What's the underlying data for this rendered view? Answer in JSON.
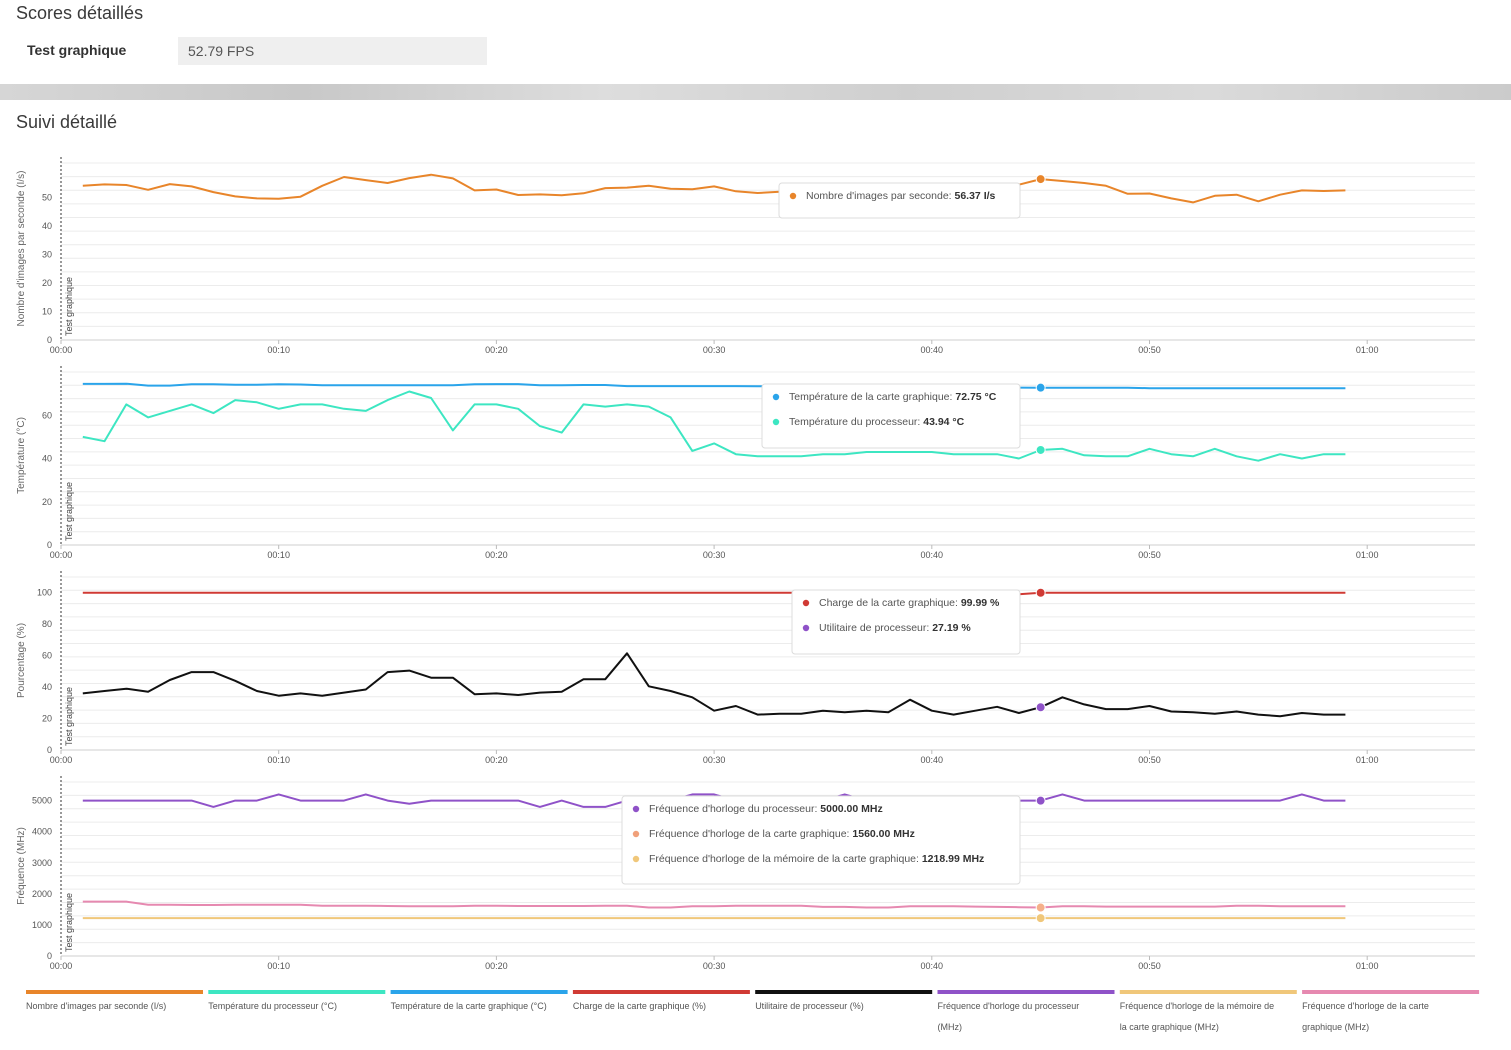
{
  "scores": {
    "title": "Scores détaillés",
    "label": "Test graphique",
    "value": "52.79 FPS"
  },
  "tracking": {
    "title": "Suivi détaillé"
  },
  "colors": {
    "fps": "#e8852a",
    "cpu_temp": "#3de6c2",
    "gpu_temp": "#2aa4ea",
    "gpu_load": "#d03a34",
    "cpu_util": "#111111",
    "cpu_clock": "#8f52c8",
    "mem_clock": "#f0c77a",
    "gpu_clock": "#e689b0"
  },
  "chart_data": [
    {
      "type": "line",
      "ylabel": "Nombre d'images par seconde (I/s)",
      "marker_label": "Test graphique",
      "ylim": [
        0,
        62
      ],
      "yticks": [
        0,
        10,
        20,
        30,
        40,
        50
      ],
      "xlim": [
        0,
        65
      ],
      "xticks": [
        "00:00",
        "00:10",
        "00:20",
        "00:30",
        "00:40",
        "00:50",
        "01:00"
      ],
      "grid": true,
      "series": [
        {
          "name": "Nombre d'images par seconde",
          "color_key": "fps",
          "x": [
            1,
            2,
            3,
            4,
            5,
            6,
            7,
            8,
            9,
            10,
            11,
            12,
            13,
            14,
            15,
            16,
            17,
            18,
            19,
            20,
            21,
            22,
            23,
            24,
            25,
            26,
            27,
            28,
            29,
            30,
            31,
            32,
            33,
            34,
            35,
            36,
            37,
            38,
            39,
            40,
            41,
            42,
            43,
            44,
            45,
            46,
            47,
            48,
            49,
            50,
            51,
            52,
            53,
            54,
            55,
            56,
            57,
            58,
            59
          ],
          "y": [
            54,
            54.5,
            54.3,
            52.6,
            54.6,
            53.8,
            51.8,
            50.3,
            49.6,
            49.5,
            50.2,
            54,
            57.1,
            56,
            55,
            56.7,
            57.9,
            56.6,
            52.4,
            52.7,
            50.8,
            51,
            50.7,
            51.4,
            53.2,
            53.4,
            54,
            53,
            52.8,
            53.8,
            52.1,
            51.5,
            51.9,
            51.1,
            51.5,
            51.7,
            51.2,
            51.4,
            51.6,
            51.3,
            51.6,
            51.4,
            52.2,
            54.4,
            56.37,
            55.7,
            55,
            54,
            51.2,
            51.3,
            49.6,
            48.2,
            50.5,
            50.9,
            48.6,
            50.9,
            52.4,
            52.2,
            52.4
          ]
        }
      ],
      "tooltip": [
        {
          "color_key": "fps",
          "label": "Nombre d'images par seconde: ",
          "value": "56.37 I/s"
        }
      ],
      "hover_x": 45
    },
    {
      "type": "line",
      "ylabel": "Température (°C)",
      "marker_label": "Test graphique",
      "ylim": [
        0,
        80
      ],
      "yticks": [
        0,
        20,
        40,
        60
      ],
      "xlim": [
        0,
        65
      ],
      "xticks": [
        "00:00",
        "00:10",
        "00:20",
        "00:30",
        "00:40",
        "00:50",
        "01:00"
      ],
      "grid": true,
      "series": [
        {
          "name": "Température de la carte graphique",
          "color_key": "gpu_temp",
          "x": [
            1,
            2,
            3,
            4,
            5,
            6,
            7,
            8,
            9,
            10,
            11,
            12,
            13,
            14,
            15,
            16,
            17,
            18,
            19,
            20,
            21,
            22,
            23,
            24,
            25,
            26,
            27,
            28,
            29,
            30,
            31,
            32,
            33,
            34,
            35,
            36,
            37,
            38,
            39,
            40,
            41,
            42,
            43,
            44,
            45,
            46,
            47,
            48,
            49,
            50,
            51,
            52,
            53,
            54,
            55,
            56,
            57,
            58,
            59
          ],
          "y": [
            74.5,
            74.5,
            74.6,
            73.7,
            73.7,
            74.3,
            74.3,
            74.1,
            74.1,
            74.3,
            74.2,
            73.9,
            73.9,
            73.9,
            73.9,
            73.9,
            73.9,
            73.9,
            74.3,
            74.4,
            74.4,
            73.9,
            73.9,
            74,
            74,
            73.5,
            73.5,
            73.5,
            73.5,
            73.5,
            73.5,
            73.4,
            73.4,
            73.4,
            73.3,
            73.3,
            73.2,
            73.1,
            73,
            73,
            73,
            72.9,
            72.9,
            72.8,
            72.75,
            72.75,
            72.75,
            72.75,
            72.75,
            72.5,
            72.5,
            72.5,
            72.5,
            72.5,
            72.5,
            72.5,
            72.5,
            72.5,
            72.5
          ]
        },
        {
          "name": "Température du processeur",
          "color_key": "cpu_temp",
          "x": [
            1,
            2,
            3,
            4,
            5,
            6,
            7,
            8,
            9,
            10,
            11,
            12,
            13,
            14,
            15,
            16,
            17,
            18,
            19,
            20,
            21,
            22,
            23,
            24,
            25,
            26,
            27,
            28,
            29,
            30,
            31,
            32,
            33,
            34,
            35,
            36,
            37,
            38,
            39,
            40,
            41,
            42,
            43,
            44,
            45,
            46,
            47,
            48,
            49,
            50,
            51,
            52,
            53,
            54,
            55,
            56,
            57,
            58,
            59
          ],
          "y": [
            50,
            48,
            65,
            59,
            62,
            65,
            61,
            67,
            66,
            63,
            65,
            65,
            63,
            62,
            67,
            71,
            68,
            53,
            65,
            65,
            63,
            55,
            52,
            65,
            64,
            65,
            64,
            59,
            43.5,
            47,
            42,
            41,
            41,
            41,
            42,
            42,
            43,
            43,
            43,
            43,
            42,
            42,
            42,
            40,
            43.94,
            44.5,
            41.5,
            41,
            41,
            44.5,
            42,
            41,
            44.5,
            41,
            39,
            42,
            40,
            42,
            42
          ]
        }
      ],
      "tooltip": [
        {
          "color_key": "gpu_temp",
          "label": "Température de la carte graphique: ",
          "value": "72.75 °C"
        },
        {
          "color_key": "cpu_temp",
          "label": "Température du processeur: ",
          "value": "43.94 °C"
        }
      ],
      "hover_x": 45
    },
    {
      "type": "line",
      "ylabel": "Pourcentage (%)",
      "marker_label": "Test graphique",
      "ylim": [
        0,
        110
      ],
      "yticks": [
        0,
        20,
        40,
        60,
        80,
        100
      ],
      "xlim": [
        0,
        65
      ],
      "xticks": [
        "00:00",
        "00:10",
        "00:20",
        "00:30",
        "00:40",
        "00:50",
        "01:00"
      ],
      "grid": true,
      "series": [
        {
          "name": "Charge de la carte graphique",
          "color_key": "gpu_load",
          "x": [
            1,
            2,
            3,
            4,
            5,
            6,
            7,
            8,
            9,
            10,
            11,
            12,
            13,
            14,
            15,
            16,
            17,
            18,
            19,
            20,
            21,
            22,
            23,
            24,
            25,
            26,
            27,
            28,
            29,
            30,
            31,
            32,
            33,
            34,
            35,
            36,
            37,
            38,
            39,
            40,
            41,
            42,
            43,
            44,
            45,
            46,
            47,
            48,
            49,
            50,
            51,
            52,
            53,
            54,
            55,
            56,
            57,
            58,
            59
          ],
          "y": [
            100,
            100,
            100,
            100,
            100,
            100,
            100,
            100,
            100,
            100,
            100,
            100,
            100,
            100,
            100,
            100,
            100,
            100,
            100,
            100,
            100,
            100,
            100,
            100,
            100,
            100,
            100,
            100,
            100,
            100,
            100,
            100,
            100,
            100,
            100,
            100,
            100,
            100,
            100,
            100,
            100,
            100,
            99,
            99,
            99.99,
            100,
            100,
            100,
            100,
            100,
            100,
            100,
            100,
            100,
            100,
            100,
            100,
            100,
            100
          ]
        },
        {
          "name": "Utilitaire de processeur",
          "color_key": "cpu_util",
          "x": [
            1,
            2,
            3,
            4,
            5,
            6,
            7,
            8,
            9,
            10,
            11,
            12,
            13,
            14,
            15,
            16,
            17,
            18,
            19,
            20,
            21,
            22,
            23,
            24,
            25,
            26,
            27,
            28,
            29,
            30,
            31,
            32,
            33,
            34,
            35,
            36,
            37,
            38,
            39,
            40,
            41,
            42,
            43,
            44,
            45,
            46,
            47,
            48,
            49,
            50,
            51,
            52,
            53,
            54,
            55,
            56,
            57,
            58,
            59
          ],
          "y": [
            36,
            37.5,
            39,
            37,
            44.5,
            49.5,
            49.5,
            44,
            37.5,
            34.5,
            36,
            34.5,
            36.5,
            38.5,
            49.5,
            50.5,
            46,
            46,
            35.5,
            36,
            35,
            36.5,
            37,
            45,
            45,
            61.5,
            40.5,
            37.5,
            33.5,
            25,
            28,
            22.5,
            23,
            23,
            25,
            24,
            25,
            24,
            32,
            25,
            22.5,
            25,
            27.5,
            23.5,
            27.19,
            33.5,
            29,
            26,
            26,
            28,
            24.5,
            24,
            23,
            24.5,
            22.5,
            21.5,
            23.5,
            22.5,
            22.5
          ]
        }
      ],
      "tooltip": [
        {
          "color_key": "gpu_load",
          "label": "Charge de la carte graphique: ",
          "value": "99.99 %"
        },
        {
          "color_key": "cpu_clock",
          "label": "Utilitaire de processeur: ",
          "value": "27.19 %"
        }
      ],
      "hover_x": 45,
      "hover_colors": [
        "gpu_load",
        "cpu_clock"
      ]
    },
    {
      "type": "line",
      "ylabel": "Fréquence (MHz)",
      "marker_label": "Test graphique",
      "ylim": [
        0,
        5600
      ],
      "yticks": [
        0,
        1000,
        2000,
        3000,
        4000,
        5000
      ],
      "xlim": [
        0,
        65
      ],
      "xticks": [
        "00:00",
        "00:10",
        "00:20",
        "00:30",
        "00:40",
        "00:50",
        "01:00"
      ],
      "grid": true,
      "series": [
        {
          "name": "Fréquence d'horloge du processeur",
          "color_key": "cpu_clock",
          "x": [
            1,
            2,
            3,
            4,
            5,
            6,
            7,
            8,
            9,
            10,
            11,
            12,
            13,
            14,
            15,
            16,
            17,
            18,
            19,
            20,
            21,
            22,
            23,
            24,
            25,
            26,
            27,
            28,
            29,
            30,
            31,
            32,
            33,
            34,
            35,
            36,
            37,
            38,
            39,
            40,
            41,
            42,
            43,
            44,
            45,
            46,
            47,
            48,
            49,
            50,
            51,
            52,
            53,
            54,
            55,
            56,
            57,
            58,
            59
          ],
          "y": [
            5000,
            5000,
            5000,
            5000,
            5000,
            5000,
            4800,
            5000,
            5000,
            5200,
            5000,
            5000,
            5000,
            5200,
            5000,
            4900,
            5000,
            5000,
            5000,
            5000,
            5000,
            4800,
            5000,
            4800,
            4800,
            5000,
            5000,
            5000,
            5200,
            5200,
            5000,
            5000,
            5000,
            5000,
            5000,
            5200,
            5000,
            5000,
            5000,
            5000,
            5000,
            5000,
            5000,
            5000,
            5000,
            5200,
            5000,
            5000,
            5000,
            5000,
            5000,
            5000,
            5000,
            5000,
            5000,
            5000,
            5200,
            5000,
            5000
          ]
        },
        {
          "name": "Fréquence d'horloge de la carte graphique",
          "color_key": "gpu_clock",
          "x": [
            1,
            2,
            3,
            4,
            5,
            6,
            7,
            8,
            9,
            10,
            11,
            12,
            13,
            14,
            15,
            16,
            17,
            18,
            19,
            20,
            21,
            22,
            23,
            24,
            25,
            26,
            27,
            28,
            29,
            30,
            31,
            32,
            33,
            34,
            35,
            36,
            37,
            38,
            39,
            40,
            41,
            42,
            43,
            44,
            45,
            46,
            47,
            48,
            49,
            50,
            51,
            52,
            53,
            54,
            55,
            56,
            57,
            58,
            59
          ],
          "y": [
            1750,
            1750,
            1750,
            1650,
            1650,
            1640,
            1640,
            1650,
            1650,
            1650,
            1650,
            1620,
            1620,
            1620,
            1610,
            1600,
            1600,
            1600,
            1620,
            1620,
            1610,
            1610,
            1610,
            1610,
            1620,
            1620,
            1560,
            1560,
            1600,
            1600,
            1620,
            1620,
            1620,
            1620,
            1580,
            1580,
            1560,
            1560,
            1600,
            1600,
            1600,
            1590,
            1580,
            1570,
            1560,
            1600,
            1600,
            1590,
            1590,
            1590,
            1590,
            1590,
            1590,
            1620,
            1620,
            1600,
            1600,
            1600,
            1600
          ]
        },
        {
          "name": "Fréquence d'horloge de la mémoire de la carte graphique",
          "color_key": "mem_clock",
          "x": [
            1,
            59
          ],
          "y": [
            1218.99,
            1218.99
          ]
        }
      ],
      "tooltip": [
        {
          "color_key": "cpu_clock",
          "label": "Fréquence d'horloge du processeur: ",
          "value": "5000.00 MHz"
        },
        {
          "color_key": "gpu_clock_dot",
          "label": "Fréquence d'horloge de la carte graphique: ",
          "value": "1560.00 MHz"
        },
        {
          "color_key": "mem_clock",
          "label": "Fréquence d'horloge de la mémoire de la carte graphique: ",
          "value": "1218.99 MHz"
        }
      ],
      "hover_x": 45
    }
  ],
  "legend": [
    {
      "color_key": "fps",
      "lines": [
        "Nombre d'images par seconde (I/s)"
      ]
    },
    {
      "color_key": "cpu_temp",
      "lines": [
        "Température du processeur (°C)"
      ]
    },
    {
      "color_key": "gpu_temp",
      "lines": [
        "Température de la carte graphique (°C)"
      ]
    },
    {
      "color_key": "gpu_load",
      "lines": [
        "Charge de la carte graphique (%)"
      ]
    },
    {
      "color_key": "cpu_util",
      "lines": [
        "Utilitaire de processeur (%)"
      ]
    },
    {
      "color_key": "cpu_clock",
      "lines": [
        "Fréquence d'horloge du processeur",
        "(MHz)"
      ]
    },
    {
      "color_key": "mem_clock",
      "lines": [
        "Fréquence d'horloge de la mémoire de",
        "la carte graphique (MHz)"
      ]
    },
    {
      "color_key": "gpu_clock",
      "lines": [
        "Fréquence d'horloge de la carte",
        "graphique (MHz)"
      ]
    }
  ]
}
